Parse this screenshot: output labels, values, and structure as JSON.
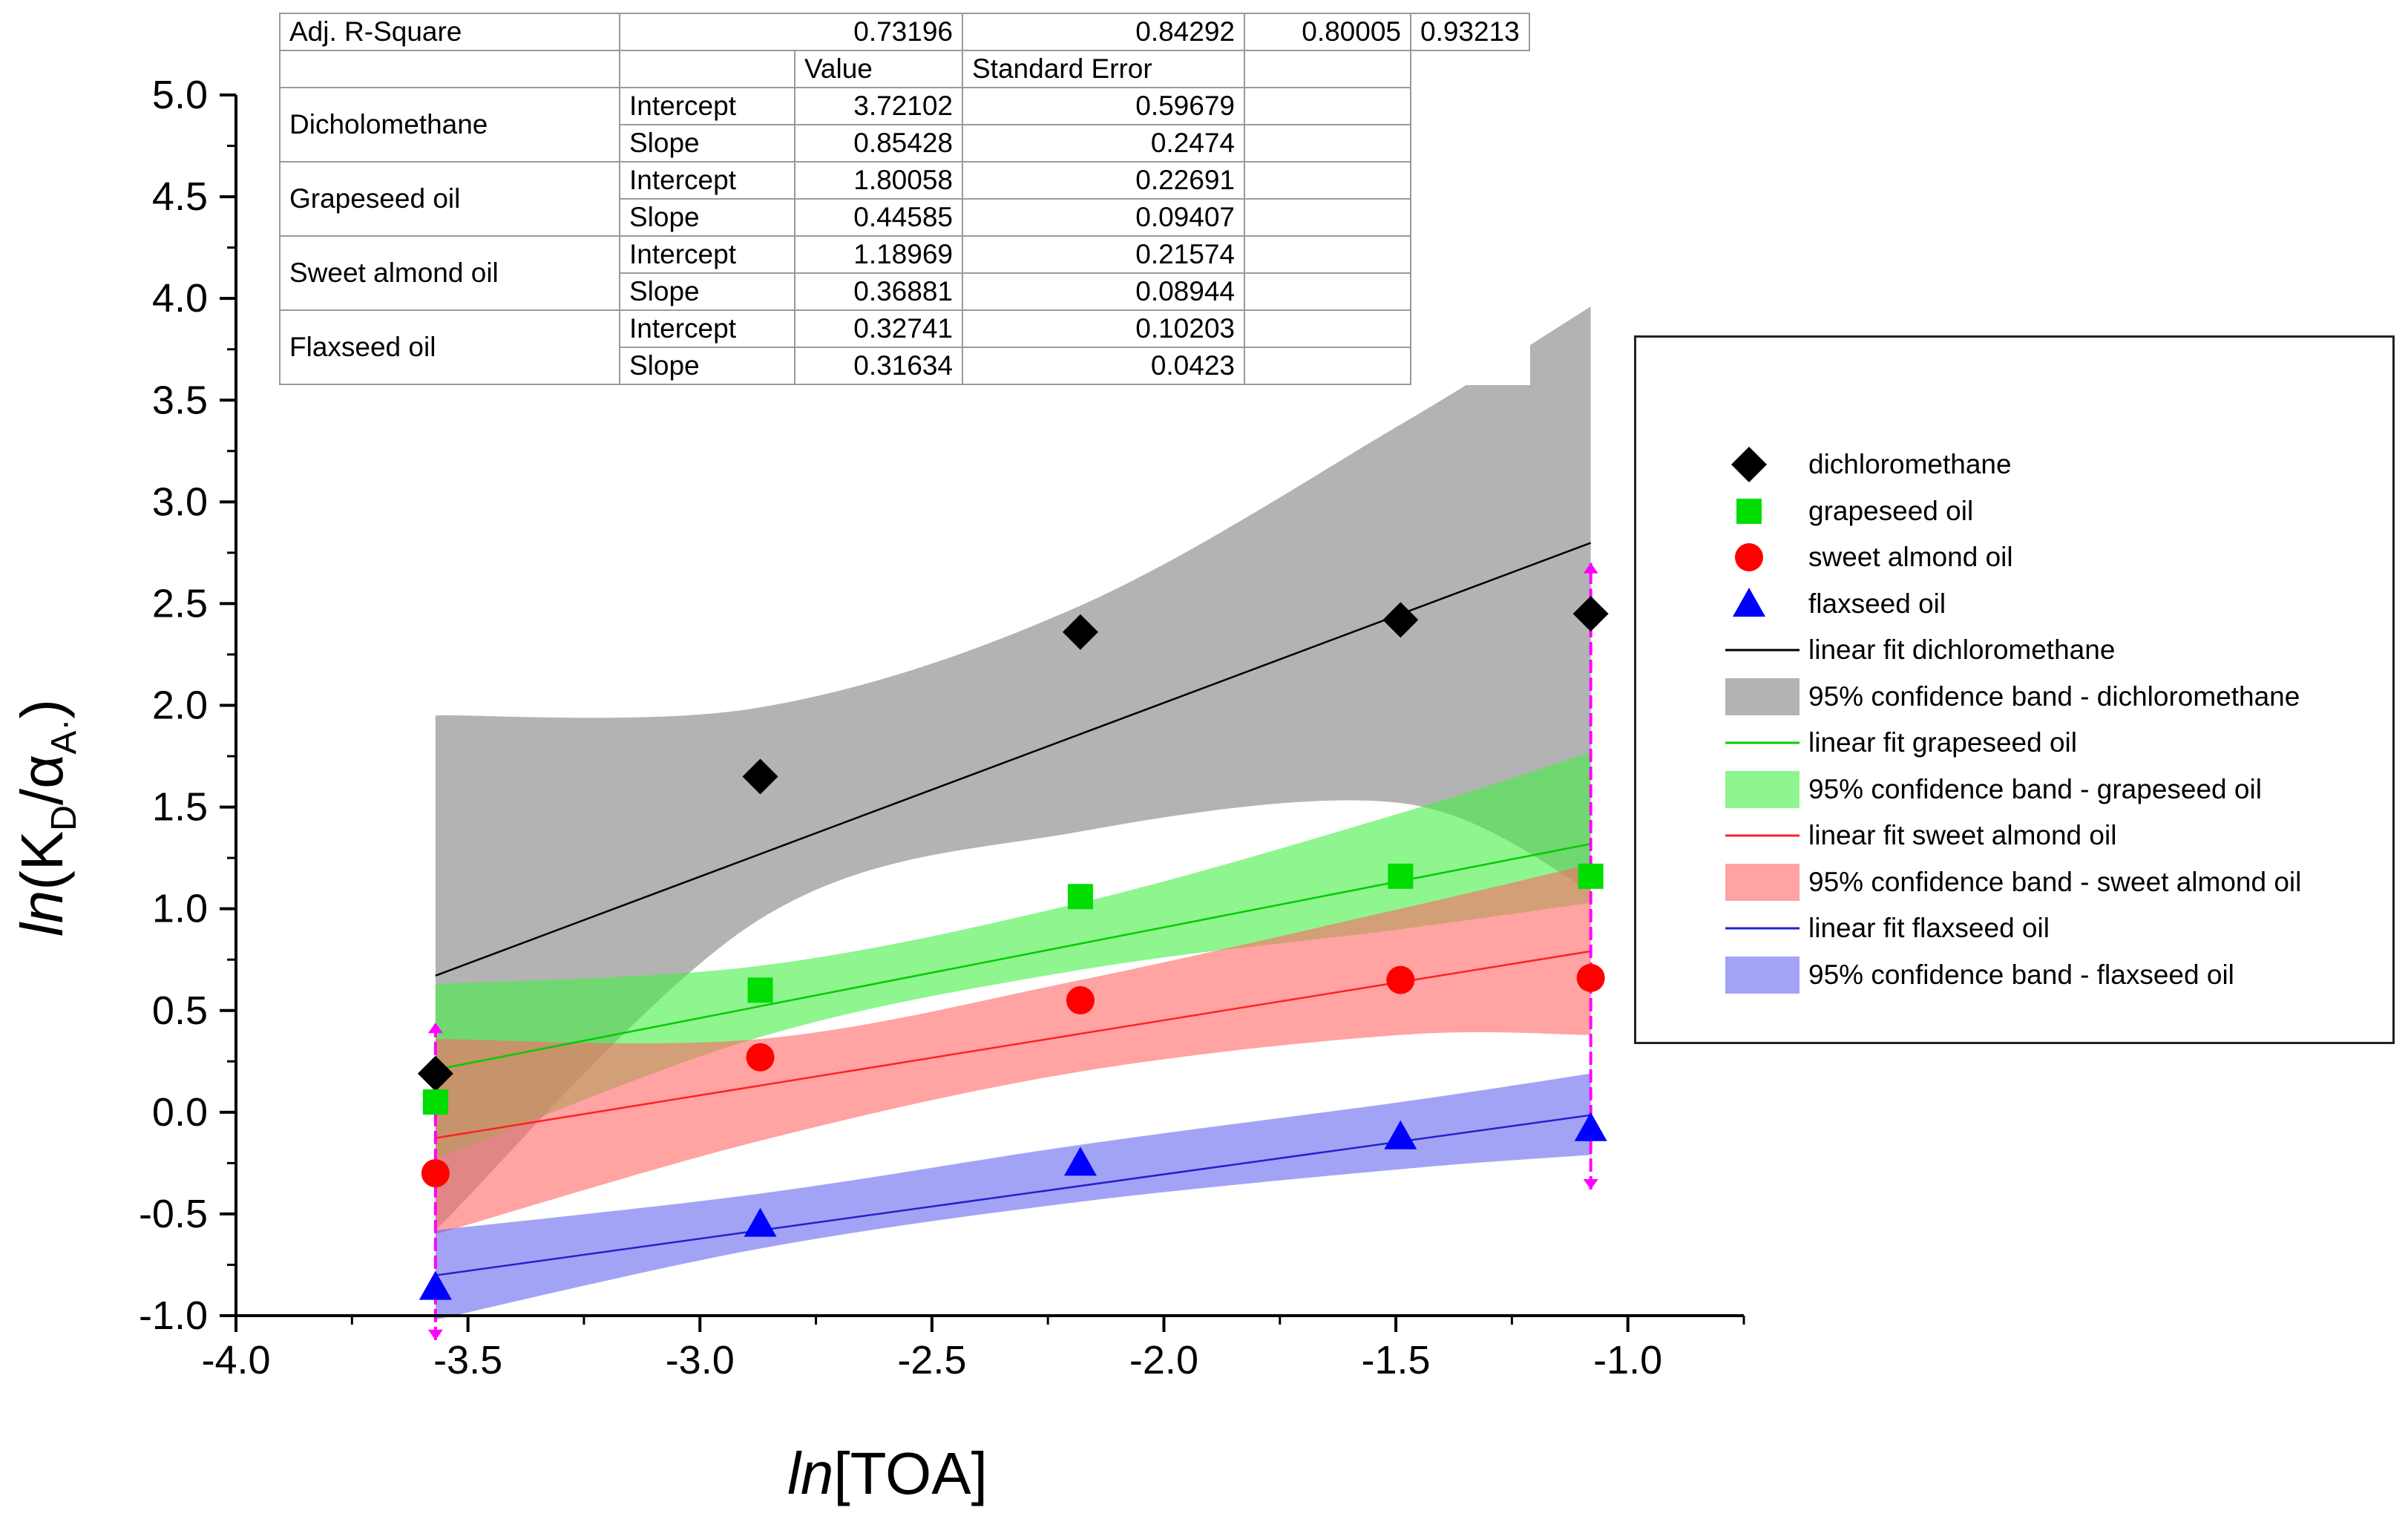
{
  "chart_data": {
    "type": "scatter",
    "xlabel_italic": "ln",
    "xlabel_rest": "[TOA]",
    "ylabel_italic": "ln",
    "ylabel_rest": "(K",
    "ylabel_sub1": "D",
    "ylabel_mid": "/α",
    "ylabel_sub2": "A·",
    "ylabel_end": ")",
    "xlim": [
      -4.0,
      -0.75
    ],
    "ylim": [
      -1.0,
      5.0
    ],
    "xticks": [
      "-4.0",
      "-3.5",
      "-3.0",
      "-2.5",
      "-2.0",
      "-1.5",
      "-1.0"
    ],
    "xtick_values": [
      -4.0,
      -3.5,
      -3.0,
      -2.5,
      -2.0,
      -1.5,
      -1.0
    ],
    "yticks": [
      "-1.0",
      "-0.5",
      "0.0",
      "0.5",
      "1.0",
      "1.5",
      "2.0",
      "2.5",
      "3.0",
      "3.5",
      "4.0",
      "4.5",
      "5.0"
    ],
    "ytick_values": [
      -1.0,
      -0.5,
      0.0,
      0.5,
      1.0,
      1.5,
      2.0,
      2.5,
      3.0,
      3.5,
      4.0,
      4.5,
      5.0
    ],
    "x": [
      -3.57,
      -2.87,
      -2.18,
      -1.49,
      -1.08
    ],
    "series": [
      {
        "name": "dichloromethane",
        "marker": "diamond",
        "color": "#000000",
        "values": [
          0.19,
          1.65,
          2.36,
          2.42,
          2.45
        ],
        "fit_name": "linear fit dichloromethane",
        "fit_color": "#000000",
        "band_name": "95% confidence band - dichloromethane",
        "band_color": "#808080",
        "intercept": 3.72102,
        "slope": 0.85428,
        "band_lower": [
          -0.58,
          0.95,
          1.38,
          1.52,
          1.09
        ],
        "band_upper": [
          1.95,
          1.99,
          2.49,
          3.38,
          3.96
        ]
      },
      {
        "name": "grapeseed oil",
        "marker": "square",
        "color": "#00dd00",
        "values": [
          0.05,
          0.6,
          1.06,
          1.16,
          1.16
        ],
        "fit_name": "linear fit grapeseed oil",
        "fit_color": "#00cc00",
        "band_name": "95% confidence band - grapeseed oil",
        "band_color": "#44ee44",
        "intercept": 1.80058,
        "slope": 0.44585,
        "band_lower": [
          -0.23,
          0.37,
          0.7,
          0.9,
          1.03
        ],
        "band_upper": [
          0.63,
          0.72,
          1.03,
          1.47,
          1.77
        ]
      },
      {
        "name": "sweet almond oil",
        "marker": "circle",
        "color": "#ff0000",
        "values": [
          -0.3,
          0.27,
          0.55,
          0.65,
          0.66
        ],
        "fit_name": "linear fit sweet almond oil",
        "fit_color": "#ff2222",
        "band_name": "95% confidence band - sweet almond oil",
        "band_color": "#ff6666",
        "intercept": 1.18969,
        "slope": 0.36881,
        "band_lower": [
          -0.6,
          -0.14,
          0.2,
          0.38,
          0.38
        ],
        "band_upper": [
          0.36,
          0.36,
          0.65,
          1.0,
          1.22
        ]
      },
      {
        "name": "flaxseed oil",
        "marker": "triangle",
        "color": "#0000ff",
        "values": [
          -0.86,
          -0.55,
          -0.25,
          -0.12,
          -0.08
        ],
        "fit_name": "linear fit flaxseed oil",
        "fit_color": "#2222cc",
        "band_name": "95% confidence band - flaxseed oil",
        "band_color": "#6666ee",
        "intercept": 0.32741,
        "slope": 0.31634,
        "band_lower": [
          -1.02,
          -0.67,
          -0.44,
          -0.28,
          -0.21
        ],
        "band_upper": [
          -0.58,
          -0.4,
          -0.16,
          0.05,
          0.19
        ]
      }
    ],
    "error_bars": {
      "color": "#ff00ff",
      "items": [
        {
          "x": -3.57,
          "low": -1.12,
          "high": 0.44
        },
        {
          "x": -1.08,
          "low": -0.38,
          "high": 2.7
        }
      ]
    },
    "grid": false,
    "legend_position": "right"
  },
  "table": {
    "rows": [
      [
        "Adj. R-Square",
        "",
        "0.73196",
        "0.84292",
        "0.80005",
        "0.93213"
      ],
      [
        "",
        "",
        "",
        "Value",
        "Standard Error",
        ""
      ],
      [
        "Dicholomethane",
        "Intercept",
        "",
        "3.72102",
        "0.59679",
        ""
      ],
      [
        "",
        "Slope",
        "",
        "0.85428",
        "0.2474",
        ""
      ],
      [
        "Grapeseed oil",
        "Intercept",
        "",
        "1.80058",
        "0.22691",
        ""
      ],
      [
        "",
        "Slope",
        "",
        "0.44585",
        "0.09407",
        ""
      ],
      [
        "Sweet almond oil",
        "Intercept",
        "",
        "1.18969",
        "0.21574",
        ""
      ],
      [
        "",
        "Slope",
        "",
        "0.36881",
        "0.08944",
        ""
      ],
      [
        "Flaxseed oil",
        "Intercept",
        "",
        "0.32741",
        "0.10203",
        ""
      ],
      [
        "",
        "Slope",
        "",
        "0.31634",
        "0.0423",
        ""
      ]
    ]
  }
}
